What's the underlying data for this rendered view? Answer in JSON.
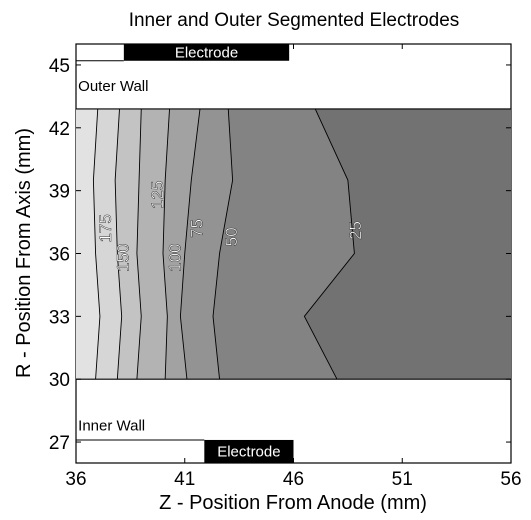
{
  "chart_data": {
    "type": "contour",
    "title": "Inner and Outer Segmented Electrodes",
    "xlabel": "Z - Position From Anode (mm)",
    "ylabel": "R - Position From Axis (mm)",
    "xlim": [
      36,
      56
    ],
    "ylim": [
      26,
      46
    ],
    "xticks": [
      "36",
      "41",
      "46",
      "51",
      "56"
    ],
    "yticks": [
      "27",
      "30",
      "33",
      "36",
      "39",
      "42",
      "45"
    ],
    "grid": false,
    "channel": {
      "r_min": 30,
      "r_max": 42.9
    },
    "contours": [
      {
        "level": 175,
        "label": "175",
        "z": [
          37.0,
          36.8,
          36.9,
          37.1,
          36.9
        ],
        "r": [
          42.9,
          39.5,
          36.0,
          33.0,
          30.0
        ],
        "fill": "#d6d6d6",
        "label_at": [
          37.4,
          37.2
        ]
      },
      {
        "level": 150,
        "label": "150",
        "z": [
          38.0,
          37.8,
          37.9,
          38.1,
          37.9
        ],
        "r": [
          42.9,
          39.5,
          36.0,
          33.0,
          30.0
        ],
        "fill": "#c3c3c3",
        "label_at": [
          38.2,
          35.8
        ]
      },
      {
        "level": 125,
        "label": "125",
        "z": [
          39.0,
          38.9,
          38.8,
          39.0,
          38.8
        ],
        "r": [
          42.9,
          39.5,
          36.0,
          33.0,
          30.0
        ],
        "fill": "#b3b3b3",
        "label_at": [
          39.8,
          38.8
        ]
      },
      {
        "level": 100,
        "label": "100",
        "z": [
          40.3,
          40.1,
          40.0,
          40.2,
          40.1
        ],
        "r": [
          42.9,
          39.5,
          36.0,
          33.0,
          30.0
        ],
        "fill": "#a2a2a2",
        "label_at": [
          40.6,
          35.8
        ]
      },
      {
        "level": 75,
        "label": "75",
        "z": [
          41.7,
          41.3,
          41.0,
          40.8,
          41.1
        ],
        "r": [
          42.9,
          39.5,
          36.0,
          33.0,
          30.0
        ],
        "fill": "#939393",
        "label_at": [
          41.6,
          37.2
        ]
      },
      {
        "level": 50,
        "label": "50",
        "z": [
          43.0,
          43.2,
          42.6,
          42.3,
          42.6
        ],
        "r": [
          42.9,
          39.5,
          36.0,
          33.0,
          30.0
        ],
        "fill": "#838383",
        "label_at": [
          43.2,
          36.8
        ]
      },
      {
        "level": 25,
        "label": "25",
        "z": [
          47.0,
          48.5,
          48.8,
          46.5,
          48.0
        ],
        "r": [
          42.9,
          39.5,
          36.0,
          33.0,
          30.0
        ],
        "fill": "#727272",
        "label_at": [
          48.9,
          37.1
        ]
      }
    ]
  },
  "annotations": {
    "outer_wall": {
      "text": "Outer Wall",
      "z": 36.1,
      "r": 44.0
    },
    "inner_wall": {
      "text": "Inner Wall",
      "z": 36.1,
      "r": 27.8
    },
    "outer_electrode": {
      "text": "Electrode",
      "z_start": 38.2,
      "z_end": 45.8,
      "r_bottom": 45.2,
      "r_top": 46.0
    },
    "inner_electrode": {
      "text": "Electrode",
      "z_start": 41.9,
      "z_end": 46.0,
      "r_bottom": 26.0,
      "r_top": 27.1
    }
  },
  "colors": {
    "background": "#ffffff",
    "line": "#000000",
    "electrode": "#000000",
    "channel_base": "#e2e2e2"
  }
}
